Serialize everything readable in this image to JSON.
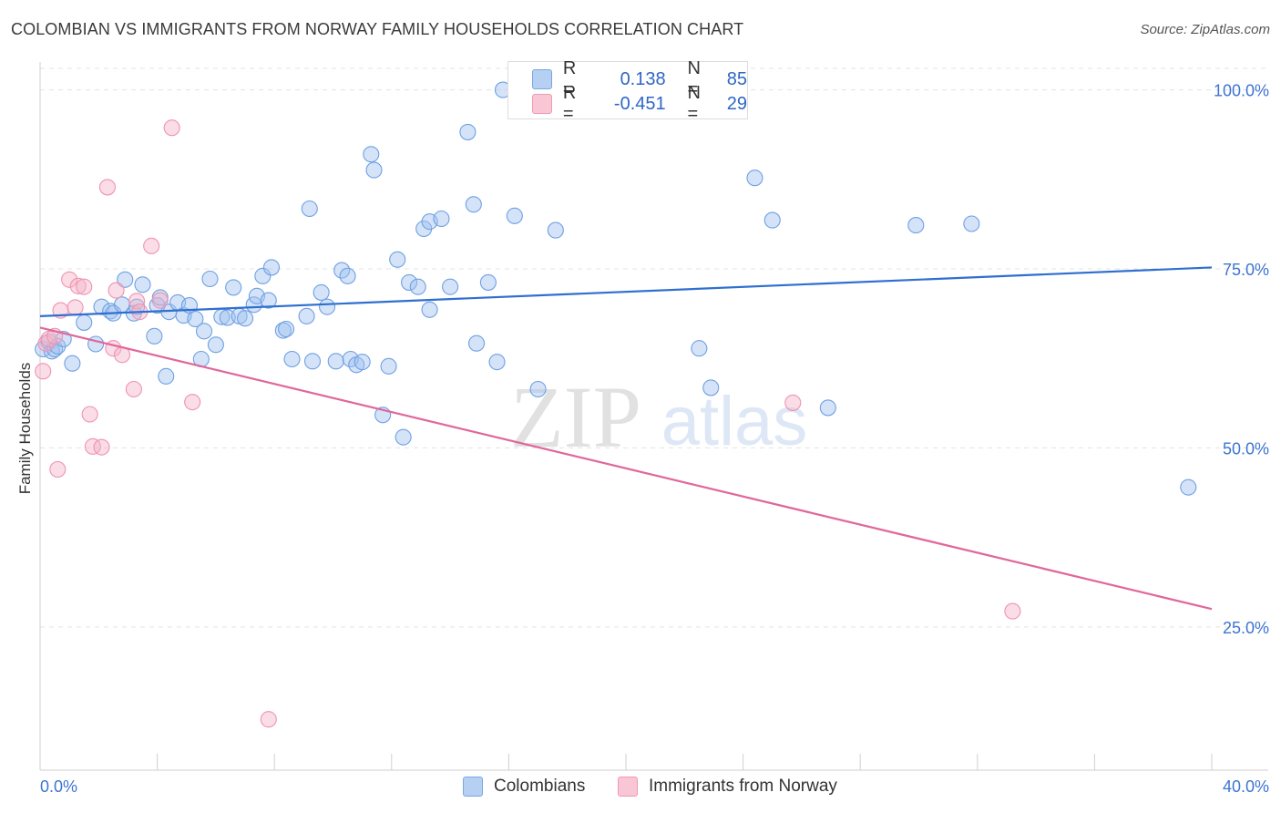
{
  "header": {
    "title": "COLOMBIAN VS IMMIGRANTS FROM NORWAY FAMILY HOUSEHOLDS CORRELATION CHART",
    "source": "Source: ZipAtlas.com"
  },
  "watermark": {
    "zip": "ZIP",
    "atlas": "atlas"
  },
  "legend_top": {
    "rows": [
      {
        "r_label": "R =",
        "r_value": "0.138",
        "n_label": "N =",
        "n_value": "85"
      },
      {
        "r_label": "R =",
        "r_value": "-0.451",
        "n_label": "N =",
        "n_value": "29"
      }
    ]
  },
  "legend_bottom": {
    "items": [
      "Colombians",
      "Immigrants from Norway"
    ]
  },
  "chart_data": {
    "type": "scatter",
    "title": "COLOMBIAN VS IMMIGRANTS FROM NORWAY FAMILY HOUSEHOLDS CORRELATION CHART",
    "xlabel": "",
    "ylabel": "Family Households",
    "xlim": [
      0,
      40
    ],
    "ylim": [
      5,
      103
    ],
    "x_tick_labels": [
      "0.0%",
      "40.0%"
    ],
    "y_ticks": [
      25,
      50,
      75,
      100
    ],
    "y_tick_labels": [
      "25.0%",
      "50.0%",
      "75.0%",
      "100.0%"
    ],
    "grid": true,
    "legend_position": "top-center",
    "colors": {
      "Colombians": "#6fa0e3",
      "Immigrants from Norway": "#ef93b0",
      "blue_line": "#2f6fd0",
      "pink_line": "#e0679a"
    },
    "series": [
      {
        "name": "Colombians",
        "trend": {
          "x": [
            0,
            40
          ],
          "y": [
            68.4,
            75.2
          ]
        },
        "points": [
          [
            0.1,
            63.8
          ],
          [
            0.3,
            64.8
          ],
          [
            0.4,
            63.5
          ],
          [
            0.5,
            63.8
          ],
          [
            0.6,
            64.2
          ],
          [
            0.8,
            65.2
          ],
          [
            1.1,
            61.8
          ],
          [
            1.5,
            67.5
          ],
          [
            1.9,
            64.5
          ],
          [
            2.1,
            69.7
          ],
          [
            2.4,
            69.1
          ],
          [
            2.5,
            68.8
          ],
          [
            2.8,
            70.0
          ],
          [
            2.9,
            73.5
          ],
          [
            3.2,
            68.8
          ],
          [
            3.3,
            69.7
          ],
          [
            3.5,
            72.8
          ],
          [
            3.9,
            65.6
          ],
          [
            4.0,
            69.9
          ],
          [
            4.1,
            71.0
          ],
          [
            4.3,
            60.0
          ],
          [
            4.4,
            69.0
          ],
          [
            4.7,
            70.3
          ],
          [
            4.9,
            68.5
          ],
          [
            5.1,
            69.9
          ],
          [
            5.3,
            68.0
          ],
          [
            5.5,
            62.4
          ],
          [
            5.6,
            66.3
          ],
          [
            5.8,
            73.6
          ],
          [
            6.0,
            64.4
          ],
          [
            6.2,
            68.3
          ],
          [
            6.4,
            68.2
          ],
          [
            6.6,
            72.4
          ],
          [
            6.8,
            68.4
          ],
          [
            7.0,
            68.1
          ],
          [
            7.3,
            70.0
          ],
          [
            7.4,
            71.2
          ],
          [
            7.6,
            74.0
          ],
          [
            7.8,
            70.6
          ],
          [
            7.9,
            75.2
          ],
          [
            8.3,
            66.4
          ],
          [
            8.4,
            66.6
          ],
          [
            8.6,
            62.4
          ],
          [
            9.1,
            68.4
          ],
          [
            9.2,
            83.4
          ],
          [
            9.3,
            62.1
          ],
          [
            9.6,
            71.7
          ],
          [
            9.8,
            69.7
          ],
          [
            10.1,
            62.1
          ],
          [
            10.3,
            74.8
          ],
          [
            10.5,
            74.0
          ],
          [
            10.6,
            62.4
          ],
          [
            10.8,
            61.6
          ],
          [
            11.0,
            62.0
          ],
          [
            11.3,
            91.0
          ],
          [
            11.4,
            88.8
          ],
          [
            11.7,
            54.6
          ],
          [
            11.9,
            61.4
          ],
          [
            12.2,
            76.3
          ],
          [
            12.4,
            51.5
          ],
          [
            12.6,
            73.1
          ],
          [
            12.9,
            72.5
          ],
          [
            13.1,
            80.6
          ],
          [
            13.3,
            81.6
          ],
          [
            13.3,
            69.3
          ],
          [
            13.7,
            82.0
          ],
          [
            14.0,
            72.5
          ],
          [
            14.6,
            94.1
          ],
          [
            14.8,
            84.0
          ],
          [
            14.9,
            64.6
          ],
          [
            15.3,
            73.1
          ],
          [
            15.6,
            62.0
          ],
          [
            15.8,
            100.0
          ],
          [
            16.2,
            82.4
          ],
          [
            17.0,
            58.2
          ],
          [
            17.6,
            80.4
          ],
          [
            22.5,
            63.9
          ],
          [
            22.9,
            58.4
          ],
          [
            24.4,
            87.7
          ],
          [
            25.0,
            81.8
          ],
          [
            26.9,
            55.6
          ],
          [
            29.9,
            81.1
          ],
          [
            31.8,
            81.3
          ],
          [
            39.2,
            44.5
          ]
        ]
      },
      {
        "name": "Immigrants from Norway",
        "trend": {
          "x": [
            0,
            40
          ],
          "y": [
            66.8,
            27.5
          ]
        },
        "points": [
          [
            0.1,
            60.7
          ],
          [
            0.2,
            64.6
          ],
          [
            0.3,
            65.2
          ],
          [
            0.5,
            65.6
          ],
          [
            0.6,
            47.0
          ],
          [
            0.7,
            69.2
          ],
          [
            1.0,
            73.5
          ],
          [
            1.2,
            69.6
          ],
          [
            1.3,
            72.6
          ],
          [
            1.5,
            72.5
          ],
          [
            1.7,
            54.7
          ],
          [
            1.8,
            50.2
          ],
          [
            2.1,
            50.1
          ],
          [
            2.3,
            86.4
          ],
          [
            2.5,
            63.9
          ],
          [
            2.6,
            72.0
          ],
          [
            2.8,
            63.0
          ],
          [
            3.2,
            58.2
          ],
          [
            3.3,
            70.5
          ],
          [
            3.4,
            69.0
          ],
          [
            3.8,
            78.2
          ],
          [
            4.1,
            70.6
          ],
          [
            4.5,
            94.7
          ],
          [
            5.2,
            56.4
          ],
          [
            7.8,
            12.1
          ],
          [
            25.7,
            56.3
          ],
          [
            33.2,
            27.2
          ]
        ]
      }
    ]
  }
}
